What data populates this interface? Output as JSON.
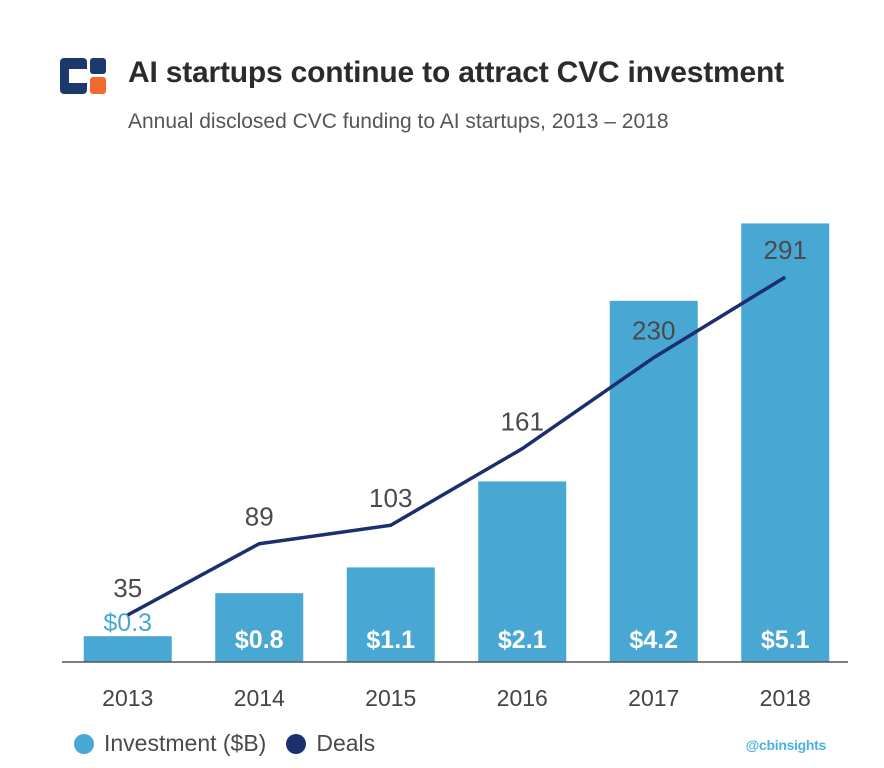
{
  "header": {
    "title": "AI startups continue to attract CVC investment",
    "subtitle": "Annual disclosed CVC funding to AI startups,  2013 – 2018"
  },
  "colors": {
    "bar": "#49a8d3",
    "line": "#1b2f6e",
    "logo_blue": "#1b3a6b",
    "logo_orange": "#f26a2e",
    "axis": "#555555"
  },
  "chart_data": {
    "type": "bar",
    "categories": [
      "2013",
      "2014",
      "2015",
      "2016",
      "2017",
      "2018"
    ],
    "series": [
      {
        "name": "Investment ($B)",
        "type": "bar",
        "values": [
          0.3,
          0.8,
          1.1,
          2.1,
          4.2,
          5.1
        ],
        "labels": [
          "$0.3",
          "$0.8",
          "$1.1",
          "$2.1",
          "$4.2",
          "$5.1"
        ]
      },
      {
        "name": "Deals",
        "type": "line",
        "values": [
          35,
          89,
          103,
          161,
          230,
          291
        ]
      }
    ],
    "legend": "bottom-left",
    "grid": false
  },
  "legend": {
    "investment": "Investment ($B)",
    "deals": "Deals"
  },
  "watermark": "@cbinsights",
  "icons": [
    "cb-insights-logo"
  ]
}
